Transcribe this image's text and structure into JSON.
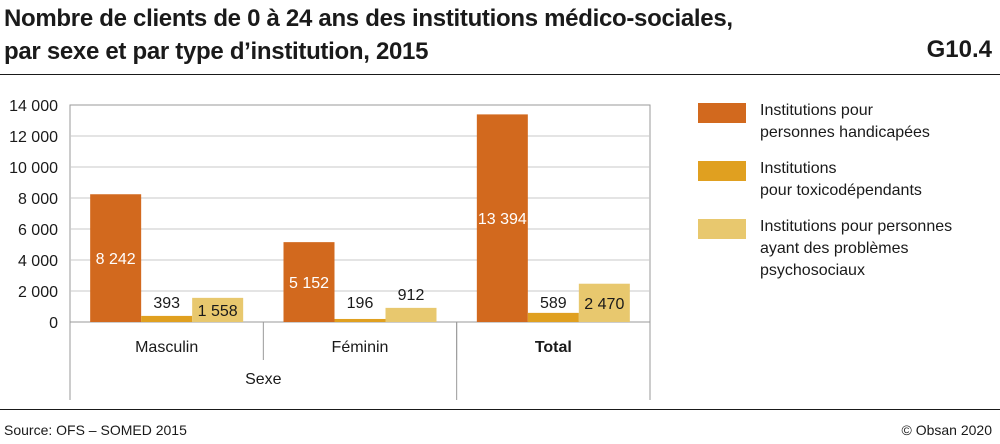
{
  "header": {
    "title_line1": "Nombre de clients de 0 à 24 ans des institutions médico-sociales,",
    "title_line2": "par sexe et par type d’institution, 2015",
    "figure_id": "G10.4"
  },
  "footer": {
    "source": "Source: OFS – SOMED 2015",
    "copyright": "© Obsan 2020"
  },
  "chart_data": {
    "type": "bar",
    "title": "Nombre de clients de 0 à 24 ans des institutions médico-sociales, par sexe et par type d’institution, 2015",
    "xlabel": "Sexe",
    "ylabel": "",
    "ylim": [
      0,
      14000
    ],
    "yticks": [
      0,
      2000,
      4000,
      6000,
      8000,
      10000,
      12000,
      14000
    ],
    "ytick_labels": [
      "0",
      "2 000",
      "4 000",
      "6 000",
      "8 000",
      "10 000",
      "12 000",
      "14 000"
    ],
    "grid": true,
    "legend_position": "right",
    "categories": [
      "Masculin",
      "Féminin",
      "Total"
    ],
    "category_bold": [
      false,
      false,
      true
    ],
    "series": [
      {
        "name": "Institutions pour personnes handicapées",
        "color": "#d2691e",
        "values": [
          8242,
          5152,
          13394
        ],
        "labels": [
          "8 242",
          "5 152",
          "13 394"
        ]
      },
      {
        "name": "Institutions pour toxicodépendants",
        "color": "#e0a020",
        "values": [
          393,
          196,
          589
        ],
        "labels": [
          "393",
          "196",
          "589"
        ]
      },
      {
        "name": "Institutions pour personnes ayant des problèmes psychosociaux",
        "color": "#e8c86e",
        "values": [
          1558,
          912,
          2470
        ],
        "labels": [
          "1 558",
          "912",
          "2 470"
        ]
      }
    ]
  },
  "legend": {
    "items": [
      {
        "line1": "Institutions pour",
        "line2": "personnes handicapées",
        "line3": "",
        "color": "#d2691e"
      },
      {
        "line1": "Institutions",
        "line2": "pour toxicodépendants",
        "line3": "",
        "color": "#e0a020"
      },
      {
        "line1": "Institutions pour personnes",
        "line2": "ayant des problèmes",
        "line3": "psychosociaux",
        "color": "#e8c86e"
      }
    ]
  }
}
